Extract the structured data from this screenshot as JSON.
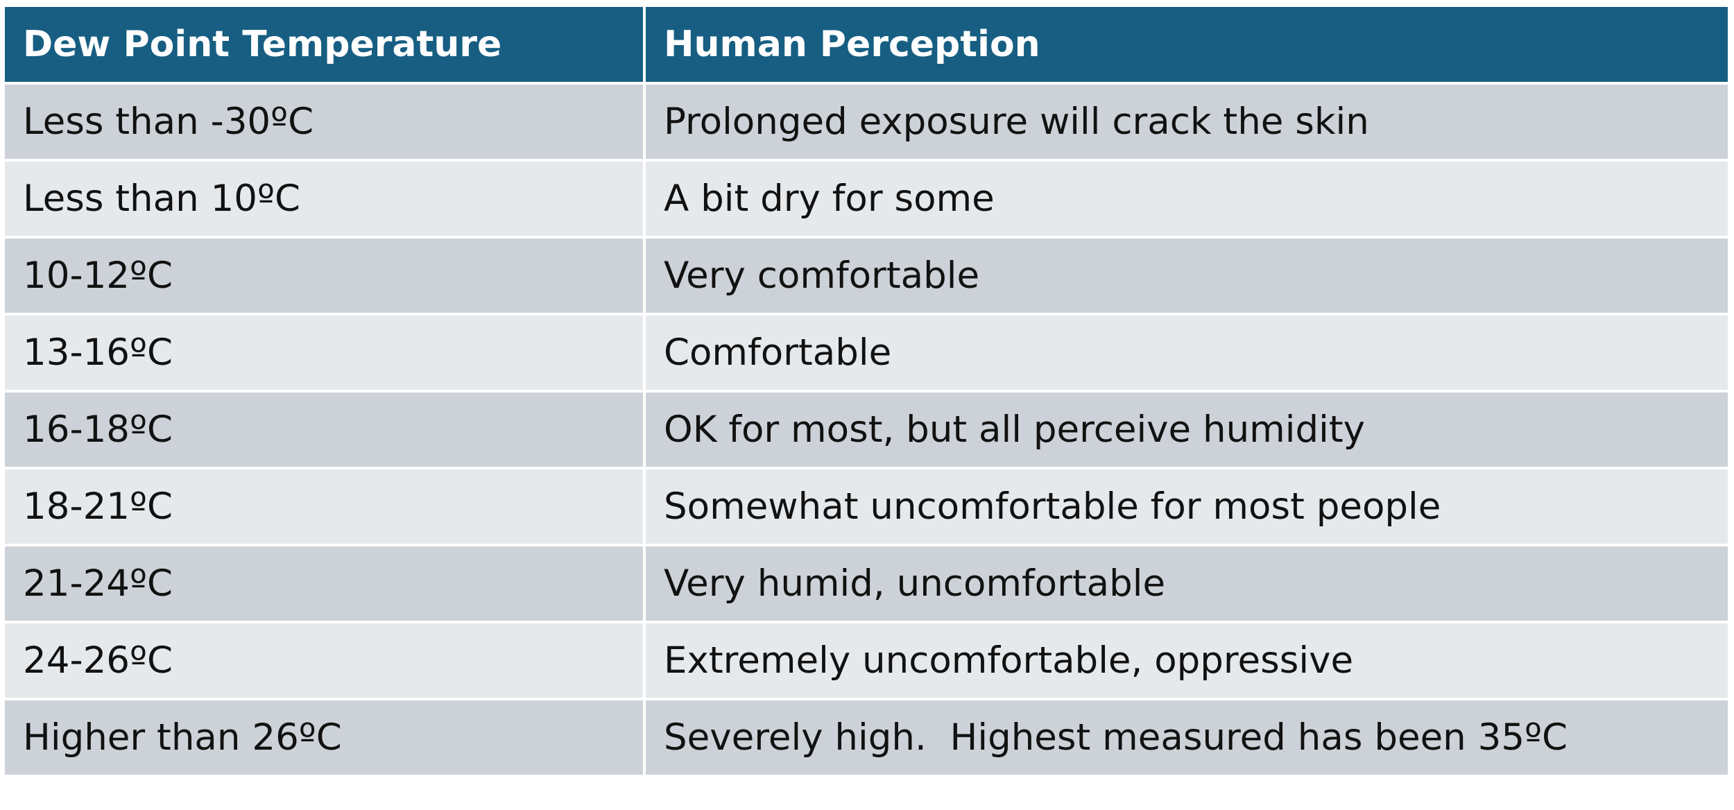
{
  "table": {
    "header": [
      "Dew Point Temperature",
      "Human Perception"
    ],
    "rows": [
      [
        "Less than -30ºC",
        "Prolonged exposure will crack the skin"
      ],
      [
        "Less than 10ºC",
        "A bit dry for some"
      ],
      [
        "10-12ºC",
        "Very comfortable"
      ],
      [
        "13-16ºC",
        "Comfortable"
      ],
      [
        "16-18ºC",
        "OK for most, but all perceive humidity"
      ],
      [
        "18-21ºC",
        "Somewhat uncomfortable for most people"
      ],
      [
        "21-24ºC",
        "Very humid, uncomfortable"
      ],
      [
        "24-26ºC",
        "Extremely uncomfortable, oppressive"
      ],
      [
        "Higher than 26ºC",
        "Severely high.  Highest measured has been 35ºC"
      ]
    ]
  }
}
